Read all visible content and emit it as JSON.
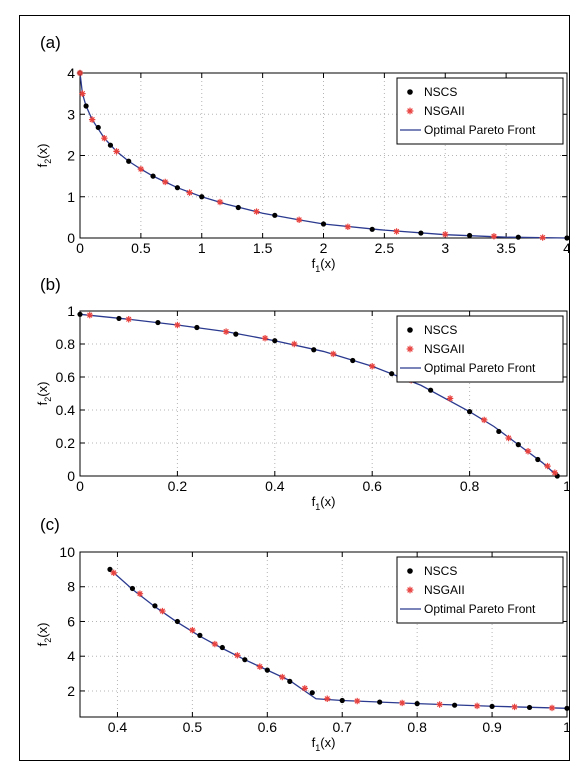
{
  "chart_data": [
    {
      "type": "scatter",
      "panel_label": "(a)",
      "xlabel": "f1(x)",
      "ylabel": "f2(x)",
      "xlim": [
        0,
        4
      ],
      "ylim": [
        0,
        4
      ],
      "xticks": [
        0,
        0.5,
        1,
        1.5,
        2,
        2.5,
        3,
        3.5,
        4
      ],
      "yticks": [
        0,
        1,
        2,
        3,
        4
      ],
      "grid": true,
      "legend_position": "top-right",
      "series": [
        {
          "name": "NSCS",
          "marker": "dot",
          "color": "#000000",
          "x": [
            0,
            0.05,
            0.15,
            0.25,
            0.4,
            0.6,
            0.8,
            1.0,
            1.3,
            1.6,
            2.0,
            2.4,
            2.8,
            3.2,
            3.6,
            4.0
          ],
          "y": [
            4,
            3.2,
            2.68,
            2.25,
            1.86,
            1.5,
            1.22,
            1.0,
            0.74,
            0.55,
            0.34,
            0.21,
            0.12,
            0.06,
            0.02,
            0
          ]
        },
        {
          "name": "NSGAII",
          "marker": "star",
          "color": "#e8423f",
          "x": [
            0,
            0.02,
            0.1,
            0.2,
            0.3,
            0.5,
            0.7,
            0.9,
            1.15,
            1.45,
            1.8,
            2.2,
            2.6,
            3.0,
            3.4,
            3.8
          ],
          "y": [
            4,
            3.5,
            2.87,
            2.42,
            2.1,
            1.67,
            1.36,
            1.1,
            0.87,
            0.64,
            0.44,
            0.27,
            0.16,
            0.09,
            0.04,
            0.01
          ]
        },
        {
          "name": "Optimal Pareto Front",
          "marker": "line",
          "color": "#2b3a8f",
          "x": [
            0,
            0.02,
            0.05,
            0.1,
            0.2,
            0.3,
            0.4,
            0.5,
            0.6,
            0.8,
            1.0,
            1.2,
            1.5,
            1.8,
            2.0,
            2.5,
            3.0,
            3.5,
            4.0
          ],
          "y": [
            4,
            3.5,
            3.2,
            2.87,
            2.42,
            2.1,
            1.86,
            1.67,
            1.5,
            1.22,
            1.0,
            0.82,
            0.6,
            0.44,
            0.34,
            0.19,
            0.08,
            0.02,
            0
          ]
        }
      ]
    },
    {
      "type": "scatter",
      "panel_label": "(b)",
      "xlabel": "f1(x)",
      "ylabel": "f2(x)",
      "xlim": [
        0,
        1
      ],
      "ylim": [
        0,
        1
      ],
      "xticks": [
        0,
        0.2,
        0.4,
        0.6,
        0.8,
        1
      ],
      "yticks": [
        0,
        0.2,
        0.4,
        0.6,
        0.8,
        1
      ],
      "grid": true,
      "legend_position": "top-right",
      "series": [
        {
          "name": "NSCS",
          "marker": "dot",
          "color": "#000000",
          "x": [
            0,
            0.08,
            0.16,
            0.24,
            0.32,
            0.4,
            0.48,
            0.56,
            0.64,
            0.72,
            0.8,
            0.86,
            0.9,
            0.94,
            0.98
          ],
          "y": [
            0.98,
            0.955,
            0.93,
            0.9,
            0.86,
            0.82,
            0.765,
            0.7,
            0.62,
            0.52,
            0.39,
            0.27,
            0.19,
            0.1,
            0
          ]
        },
        {
          "name": "NSGAII",
          "marker": "star",
          "color": "#e8423f",
          "x": [
            0.02,
            0.1,
            0.2,
            0.3,
            0.38,
            0.44,
            0.52,
            0.6,
            0.68,
            0.76,
            0.83,
            0.88,
            0.92,
            0.96,
            0.975
          ],
          "y": [
            0.975,
            0.95,
            0.915,
            0.875,
            0.835,
            0.8,
            0.74,
            0.665,
            0.58,
            0.47,
            0.34,
            0.23,
            0.15,
            0.06,
            0.02
          ]
        },
        {
          "name": "Optimal Pareto Front",
          "marker": "line",
          "color": "#2b3a8f",
          "x": [
            0,
            0.1,
            0.2,
            0.3,
            0.4,
            0.5,
            0.6,
            0.7,
            0.8,
            0.85,
            0.9,
            0.95,
            0.98
          ],
          "y": [
            0.98,
            0.95,
            0.915,
            0.875,
            0.82,
            0.755,
            0.665,
            0.55,
            0.39,
            0.3,
            0.19,
            0.08,
            0
          ]
        }
      ]
    },
    {
      "type": "scatter",
      "panel_label": "(c)",
      "xlabel": "f1(x)",
      "ylabel": "f2(x)",
      "xlim": [
        0.35,
        1
      ],
      "ylim": [
        0.5,
        10
      ],
      "xticks": [
        0.4,
        0.5,
        0.6,
        0.7,
        0.8,
        0.9,
        1
      ],
      "yticks": [
        2,
        4,
        6,
        8,
        10
      ],
      "grid": true,
      "legend_position": "top-right",
      "series": [
        {
          "name": "NSCS",
          "marker": "dot",
          "color": "#000000",
          "x": [
            0.39,
            0.42,
            0.45,
            0.48,
            0.51,
            0.54,
            0.57,
            0.6,
            0.63,
            0.66,
            0.7,
            0.75,
            0.8,
            0.85,
            0.9,
            0.95,
            1.0
          ],
          "y": [
            9.0,
            7.9,
            6.9,
            6.0,
            5.2,
            4.5,
            3.8,
            3.2,
            2.55,
            1.9,
            1.45,
            1.36,
            1.27,
            1.18,
            1.11,
            1.05,
            1.0
          ]
        },
        {
          "name": "NSGAII",
          "marker": "star",
          "color": "#e8423f",
          "x": [
            0.395,
            0.43,
            0.46,
            0.5,
            0.53,
            0.56,
            0.59,
            0.62,
            0.65,
            0.68,
            0.72,
            0.78,
            0.83,
            0.88,
            0.93,
            0.98
          ],
          "y": [
            8.8,
            7.6,
            6.6,
            5.5,
            4.7,
            4.05,
            3.4,
            2.8,
            2.15,
            1.55,
            1.42,
            1.31,
            1.22,
            1.14,
            1.08,
            1.02
          ]
        },
        {
          "name": "Optimal Pareto Front",
          "marker": "line",
          "color": "#2b3a8f",
          "x": [
            0.39,
            0.42,
            0.45,
            0.48,
            0.51,
            0.54,
            0.57,
            0.6,
            0.63,
            0.665,
            0.7,
            0.8,
            0.9,
            1.0
          ],
          "y": [
            9.0,
            7.85,
            6.85,
            5.95,
            5.15,
            4.45,
            3.8,
            3.2,
            2.6,
            1.55,
            1.45,
            1.27,
            1.12,
            1.0
          ]
        }
      ]
    }
  ],
  "legend_labels": {
    "nscs": "NSCS",
    "nsgaii": "NSGAII",
    "optimal": "Optimal Pareto Front"
  },
  "axis_text": {
    "f_symbol": "f",
    "x_suffix": "(x)",
    "f1_sub": "1",
    "f2_sub": "2"
  }
}
